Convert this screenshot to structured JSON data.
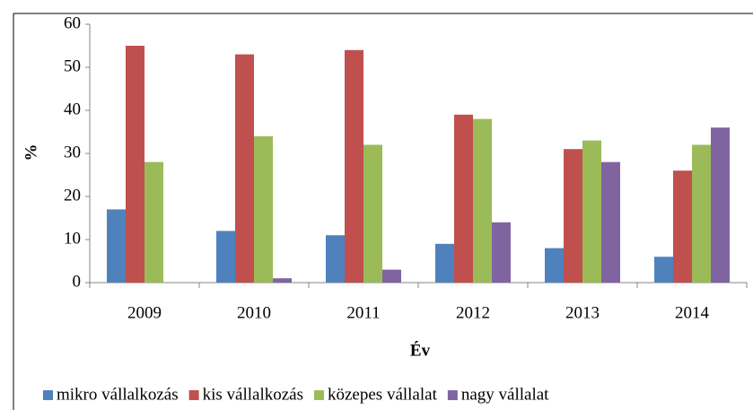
{
  "chart_data": {
    "type": "bar",
    "y_label": "%",
    "x_label": "Év",
    "categories": [
      "2009",
      "2010",
      "2011",
      "2012",
      "2013",
      "2014"
    ],
    "series": [
      {
        "name": "mikro vállalkozás",
        "color": "#4f81bd",
        "values": [
          17,
          12,
          11,
          9,
          8,
          6
        ]
      },
      {
        "name": "kis vállalkozás",
        "color": "#c0504d",
        "values": [
          55,
          53,
          54,
          39,
          31,
          26
        ]
      },
      {
        "name": "közepes vállalat",
        "color": "#9bbb59",
        "values": [
          28,
          34,
          32,
          38,
          33,
          32
        ]
      },
      {
        "name": "nagy vállalat",
        "color": "#8064a2",
        "values": [
          0,
          1,
          3,
          14,
          28,
          36
        ]
      }
    ],
    "ylim": [
      0,
      60
    ],
    "yticks": [
      0,
      10,
      20,
      30,
      40,
      50,
      60
    ],
    "grid": false,
    "legend": "bottom"
  }
}
